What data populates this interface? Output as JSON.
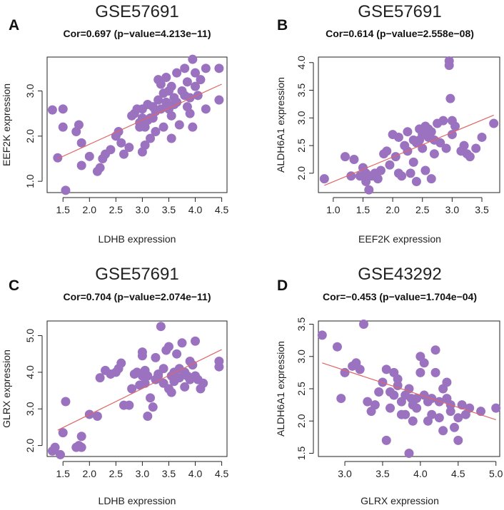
{
  "chart_data": [
    {
      "type": "scatter",
      "panel": "A",
      "title": "GSE57691",
      "subtitle": "Cor=0.697 (p−value=4.213e−11)",
      "xlabel": "LDHB expression",
      "ylabel": "EEF2K expression",
      "xlim": [
        1.2,
        4.6
      ],
      "ylim": [
        0.75,
        3.75
      ],
      "xticks": [
        1.5,
        2.0,
        2.5,
        3.0,
        3.5,
        4.0,
        4.5
      ],
      "xtick_labels": [
        "1.5",
        "2.0",
        "2.5",
        "3.0",
        "3.5",
        "4.0",
        "4.5"
      ],
      "yticks": [
        1.0,
        2.0,
        3.0
      ],
      "ytick_labels": [
        "1.0",
        "2.0",
        "3.0"
      ],
      "fit_line": [
        [
          1.4,
          1.5
        ],
        [
          4.5,
          3.15
        ]
      ],
      "x": [
        1.3,
        1.4,
        1.5,
        1.5,
        1.55,
        1.75,
        1.8,
        1.85,
        1.85,
        2.0,
        2.15,
        2.2,
        2.25,
        2.3,
        2.4,
        2.5,
        2.55,
        2.6,
        2.65,
        2.75,
        2.8,
        2.85,
        2.9,
        2.95,
        2.95,
        3.0,
        3.0,
        3.0,
        3.05,
        3.05,
        3.1,
        3.1,
        3.15,
        3.15,
        3.2,
        3.2,
        3.25,
        3.25,
        3.3,
        3.3,
        3.35,
        3.35,
        3.4,
        3.4,
        3.45,
        3.45,
        3.5,
        3.5,
        3.55,
        3.55,
        3.55,
        3.6,
        3.6,
        3.65,
        3.65,
        3.7,
        3.75,
        3.8,
        3.8,
        3.85,
        3.85,
        3.9,
        3.9,
        3.95,
        3.95,
        4.0,
        4.0,
        4.05,
        4.1,
        4.2,
        4.2,
        4.45,
        4.45
      ],
      "y": [
        2.58,
        1.52,
        2.6,
        2.2,
        0.8,
        2.1,
        2.25,
        1.85,
        1.35,
        1.55,
        1.22,
        1.3,
        1.5,
        1.6,
        1.7,
        2.0,
        2.1,
        1.85,
        1.6,
        1.75,
        2.45,
        2.5,
        2.6,
        2.3,
        2.2,
        1.65,
        2.4,
        2.6,
        2.2,
        1.8,
        2.7,
        2.35,
        2.4,
        1.95,
        2.4,
        2.65,
        2.55,
        2.1,
        2.8,
        3.25,
        2.6,
        3.15,
        2.95,
        2.2,
        2.75,
        3.3,
        3.0,
        2.6,
        1.95,
        3.1,
        2.45,
        2.7,
        2.85,
        3.4,
        2.75,
        2.25,
        3.0,
        2.9,
        3.5,
        2.65,
        3.2,
        2.5,
        2.85,
        2.2,
        3.7,
        3.1,
        3.4,
        2.9,
        3.25,
        3.5,
        2.6,
        3.5,
        2.8
      ]
    },
    {
      "type": "scatter",
      "panel": "B",
      "title": "GSE57691",
      "subtitle": "Cor=0.614 (p−value=2.558e−08)",
      "xlabel": "EEF2K expression",
      "ylabel": "ALDH6A1 expression",
      "xlim": [
        0.75,
        3.8
      ],
      "ylim": [
        1.65,
        4.1
      ],
      "xticks": [
        1.0,
        1.5,
        2.0,
        2.5,
        3.0,
        3.5
      ],
      "xtick_labels": [
        "1.0",
        "1.5",
        "2.0",
        "2.5",
        "3.0",
        "3.5"
      ],
      "yticks": [
        2.0,
        2.5,
        3.0,
        3.5,
        4.0
      ],
      "ytick_labels": [
        "2.0",
        "2.5",
        "3.0",
        "3.5",
        "4.0"
      ],
      "fit_line": [
        [
          0.85,
          1.78
        ],
        [
          3.7,
          3.05
        ]
      ],
      "x": [
        0.85,
        1.2,
        1.3,
        1.35,
        1.45,
        1.5,
        1.55,
        1.55,
        1.6,
        1.65,
        1.7,
        1.75,
        1.8,
        1.85,
        1.9,
        1.95,
        2.0,
        2.05,
        2.1,
        2.1,
        2.15,
        2.2,
        2.25,
        2.25,
        2.3,
        2.35,
        2.35,
        2.4,
        2.4,
        2.45,
        2.45,
        2.5,
        2.5,
        2.55,
        2.55,
        2.6,
        2.6,
        2.65,
        2.65,
        2.7,
        2.7,
        2.75,
        2.8,
        2.85,
        2.9,
        2.95,
        2.95,
        2.97,
        3.0,
        3.0,
        3.05,
        3.15,
        3.2,
        3.25,
        3.3,
        3.4,
        3.5,
        3.7
      ],
      "y": [
        1.9,
        2.3,
        1.95,
        2.25,
        1.95,
        2.1,
        2.0,
        1.85,
        1.7,
        1.95,
        2.0,
        1.9,
        2.05,
        2.35,
        2.4,
        2.15,
        2.7,
        2.3,
        2.65,
        2.0,
        1.95,
        2.5,
        2.75,
        2.4,
        2.0,
        2.6,
        2.2,
        2.55,
        1.85,
        2.8,
        2.6,
        2.7,
        2.45,
        2.85,
        2.05,
        2.65,
        2.8,
        2.75,
        1.9,
        2.35,
        2.6,
        2.9,
        2.55,
        2.95,
        2.45,
        3.95,
        4.03,
        3.35,
        2.7,
        2.95,
        2.85,
        2.4,
        2.5,
        2.35,
        2.3,
        2.45,
        2.65,
        2.9
      ]
    },
    {
      "type": "scatter",
      "panel": "C",
      "title": "GSE57691",
      "subtitle": "Cor=0.704 (p−value=2.074e−11)",
      "xlabel": "LDHB expression",
      "ylabel": "GLRX expression",
      "xlim": [
        1.2,
        4.6
      ],
      "ylim": [
        1.7,
        5.4
      ],
      "xticks": [
        1.5,
        2.0,
        2.5,
        3.0,
        3.5,
        4.0,
        4.5
      ],
      "xtick_labels": [
        "1.5",
        "2.0",
        "2.5",
        "3.0",
        "3.5",
        "4.0",
        "4.5"
      ],
      "yticks": [
        2.0,
        3.0,
        4.0,
        5.0
      ],
      "ytick_labels": [
        "2.0",
        "3.0",
        "4.0",
        "5.0"
      ],
      "fit_line": [
        [
          1.4,
          2.42
        ],
        [
          4.5,
          4.62
        ]
      ],
      "x": [
        1.3,
        1.35,
        1.45,
        1.5,
        1.55,
        1.75,
        1.8,
        1.85,
        1.85,
        2.0,
        2.15,
        2.2,
        2.3,
        2.4,
        2.5,
        2.55,
        2.6,
        2.65,
        2.75,
        2.8,
        2.85,
        2.9,
        2.95,
        3.0,
        3.0,
        3.0,
        3.05,
        3.05,
        3.1,
        3.1,
        3.15,
        3.2,
        3.25,
        3.25,
        3.3,
        3.3,
        3.35,
        3.4,
        3.4,
        3.45,
        3.5,
        3.5,
        3.55,
        3.55,
        3.6,
        3.6,
        3.65,
        3.7,
        3.7,
        3.75,
        3.8,
        3.8,
        3.85,
        3.9,
        3.9,
        3.95,
        4.0,
        4.0,
        4.05,
        4.1,
        4.15,
        4.45,
        4.45
      ],
      "y": [
        1.85,
        1.95,
        1.75,
        2.35,
        3.2,
        1.95,
        2.0,
        1.95,
        2.25,
        2.85,
        2.8,
        3.85,
        4.05,
        3.95,
        4.0,
        4.1,
        4.25,
        3.1,
        3.1,
        3.55,
        3.95,
        4.0,
        3.65,
        4.55,
        4.45,
        3.9,
        4.05,
        3.7,
        2.8,
        3.9,
        3.3,
        3.05,
        3.8,
        4.4,
        3.9,
        3.95,
        5.25,
        3.7,
        4.1,
        4.6,
        4.7,
        3.55,
        3.9,
        3.45,
        3.75,
        4.0,
        4.5,
        3.85,
        4.1,
        4.8,
        4.0,
        3.6,
        3.9,
        3.8,
        4.3,
        4.2,
        3.9,
        4.85,
        3.8,
        3.55,
        3.7,
        4.3,
        4.15
      ]
    },
    {
      "type": "scatter",
      "panel": "D",
      "title": "GSE43292",
      "subtitle": "Cor=−0.453 (p−value=1.704e−04)",
      "xlabel": "GLRX expression",
      "ylabel": "ALDH6A1 expression",
      "xlim": [
        2.65,
        5.05
      ],
      "ylim": [
        1.45,
        3.55
      ],
      "xticks": [
        3.0,
        3.5,
        4.0,
        4.5,
        5.0
      ],
      "xtick_labels": [
        "3.0",
        "3.5",
        "4.0",
        "4.5",
        "5.0"
      ],
      "yticks": [
        1.5,
        2.0,
        2.5,
        3.0,
        3.5
      ],
      "ytick_labels": [
        "1.5",
        "2.0",
        "2.5",
        "3.0",
        "3.5"
      ],
      "fit_line": [
        [
          2.7,
          2.9
        ],
        [
          5.0,
          2.02
        ]
      ],
      "x": [
        2.7,
        2.9,
        2.95,
        3.0,
        3.1,
        3.15,
        3.2,
        3.25,
        3.3,
        3.35,
        3.4,
        3.45,
        3.5,
        3.55,
        3.55,
        3.6,
        3.6,
        3.65,
        3.65,
        3.7,
        3.7,
        3.75,
        3.75,
        3.8,
        3.8,
        3.85,
        3.85,
        3.88,
        3.9,
        3.9,
        3.95,
        3.95,
        4.0,
        4.0,
        4.05,
        4.05,
        4.1,
        4.1,
        4.15,
        4.15,
        4.2,
        4.2,
        4.25,
        4.25,
        4.3,
        4.3,
        4.35,
        4.35,
        4.4,
        4.4,
        4.45,
        4.5,
        4.5,
        4.55,
        4.6,
        4.65,
        4.8,
        5.0
      ],
      "y": [
        3.33,
        3.15,
        2.35,
        2.75,
        2.85,
        2.9,
        2.8,
        3.5,
        2.3,
        2.15,
        2.25,
        2.45,
        2.6,
        2.8,
        1.7,
        2.45,
        2.2,
        2.4,
        2.75,
        2.65,
        2.55,
        2.3,
        2.1,
        2.4,
        2.1,
        1.5,
        2.5,
        2.35,
        2.0,
        2.25,
        2.35,
        2.2,
        3.0,
        2.75,
        2.9,
        2.4,
        2.0,
        2.3,
        2.35,
        2.1,
        2.75,
        3.1,
        2.3,
        2.05,
        1.85,
        2.5,
        2.6,
        2.35,
        2.15,
        2.25,
        1.9,
        2.05,
        1.7,
        2.25,
        2.1,
        2.2,
        2.15,
        2.2
      ]
    }
  ]
}
